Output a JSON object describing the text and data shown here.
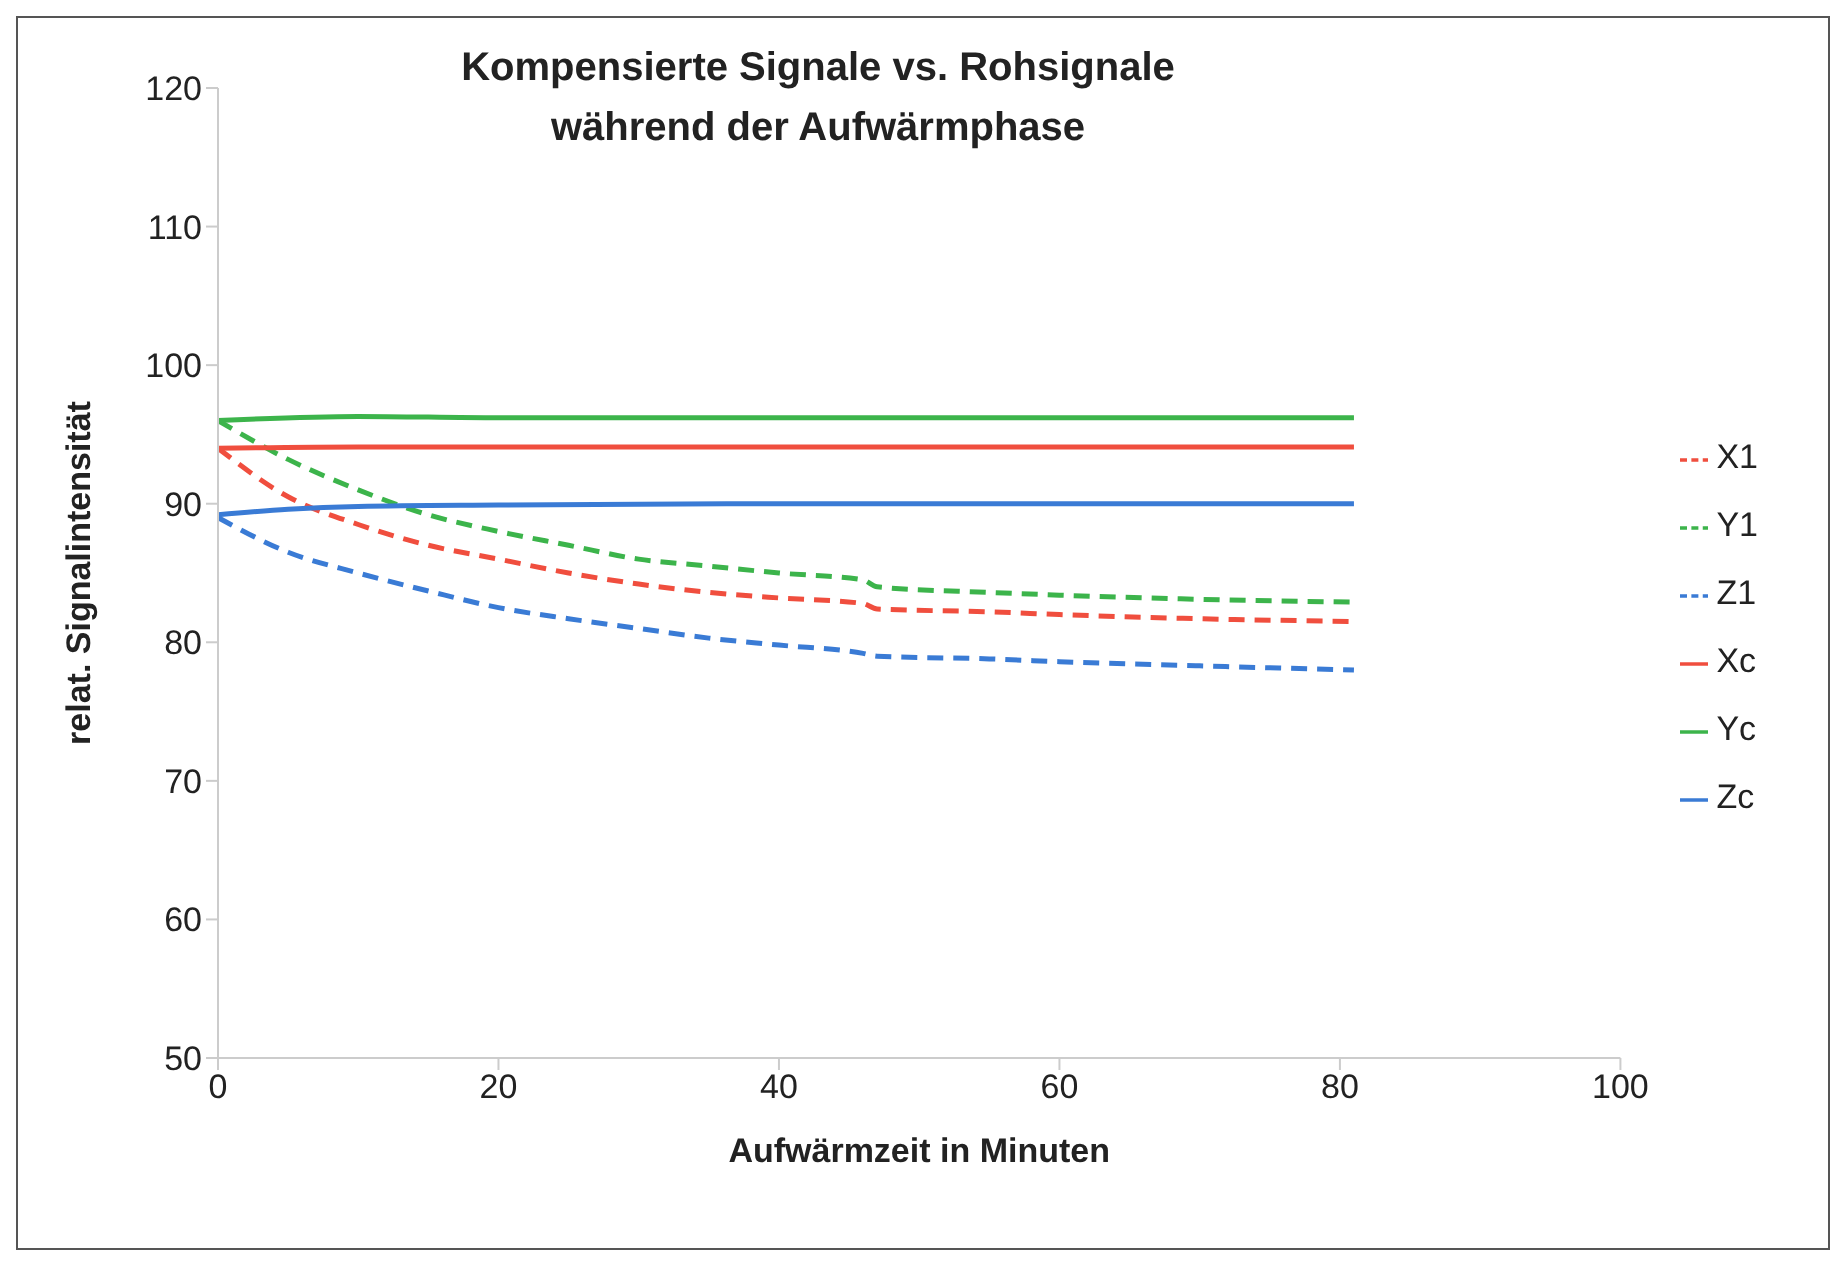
{
  "chart_data": {
    "type": "line",
    "title": "Kompensierte Signale vs. Rohsignale\nwährend der Aufwärmphase",
    "xlabel": "Aufwärmzeit in Minuten",
    "ylabel": "relat. Signalintensität",
    "xlim": [
      0,
      100
    ],
    "xticks": [
      0,
      20,
      40,
      60,
      80,
      100
    ],
    "ylim": [
      50,
      120
    ],
    "yticks": [
      50,
      60,
      70,
      80,
      90,
      100,
      110,
      120
    ],
    "grid": false,
    "legend": "right",
    "marker": "none",
    "series": [
      {
        "name": "X1",
        "color": "#f04e3e",
        "line_style": "dashed",
        "x": [
          0,
          5,
          10,
          15,
          20,
          25,
          30,
          35,
          40,
          46,
          47,
          55,
          60,
          70,
          81
        ],
        "values": [
          94,
          90.5,
          88.5,
          87,
          86,
          85,
          84.2,
          83.6,
          83.2,
          82.8,
          82.4,
          82.2,
          82,
          81.7,
          81.5
        ]
      },
      {
        "name": "Y1",
        "color": "#3cb44b",
        "line_style": "dashed",
        "x": [
          0,
          5,
          10,
          15,
          20,
          25,
          30,
          35,
          40,
          46,
          47,
          55,
          60,
          70,
          81
        ],
        "values": [
          96,
          93.2,
          91,
          89.2,
          88,
          87,
          86,
          85.5,
          85,
          84.5,
          84,
          83.6,
          83.4,
          83.1,
          82.9
        ]
      },
      {
        "name": "Z1",
        "color": "#3a7bd5",
        "line_style": "dashed",
        "x": [
          0,
          5,
          10,
          15,
          20,
          25,
          30,
          35,
          40,
          46,
          47,
          55,
          60,
          70,
          81
        ],
        "values": [
          89,
          86.5,
          85,
          83.7,
          82.5,
          81.7,
          81,
          80.3,
          79.8,
          79.2,
          79,
          78.8,
          78.6,
          78.3,
          78
        ]
      },
      {
        "name": "Xc",
        "color": "#f04e3e",
        "line_style": "solid",
        "x": [
          0,
          10,
          20,
          40,
          60,
          81
        ],
        "values": [
          94,
          94.1,
          94.1,
          94.1,
          94.1,
          94.1
        ]
      },
      {
        "name": "Yc",
        "color": "#3cb44b",
        "line_style": "solid",
        "x": [
          0,
          10,
          20,
          40,
          60,
          81
        ],
        "values": [
          96,
          96.3,
          96.2,
          96.2,
          96.2,
          96.2
        ]
      },
      {
        "name": "Zc",
        "color": "#3a7bd5",
        "line_style": "solid",
        "x": [
          0,
          5,
          10,
          20,
          40,
          60,
          81
        ],
        "values": [
          89.2,
          89.6,
          89.8,
          89.9,
          90,
          90,
          90
        ]
      }
    ]
  }
}
